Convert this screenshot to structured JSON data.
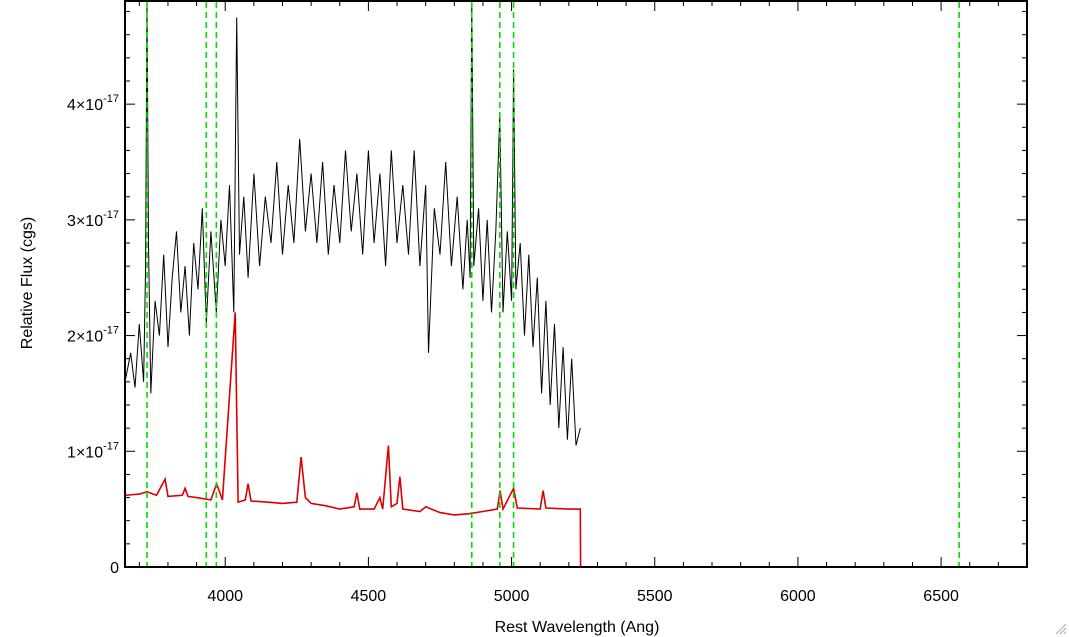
{
  "chart_data": {
    "type": "line",
    "title": "",
    "xlabel": "Rest Wavelength (Ang)",
    "ylabel": "Relative Flux (cgs)",
    "xlim": [
      3650,
      6800
    ],
    "ylim": [
      0,
      4.9e-17
    ],
    "grid": false,
    "legend": "none",
    "x_ticks": [
      {
        "value": 4000,
        "label": "4000"
      },
      {
        "value": 4500,
        "label": "4500"
      },
      {
        "value": 5000,
        "label": "5000"
      },
      {
        "value": 5500,
        "label": "5500"
      },
      {
        "value": 6000,
        "label": "6000"
      },
      {
        "value": 6500,
        "label": "6500"
      }
    ],
    "y_ticks": [
      {
        "value": 0,
        "mantissa": "0",
        "exponent": ""
      },
      {
        "value": 1e-17,
        "mantissa": "1×10",
        "exponent": "-17"
      },
      {
        "value": 2e-17,
        "mantissa": "2×10",
        "exponent": "-17"
      },
      {
        "value": 3e-17,
        "mantissa": "3×10",
        "exponent": "-17"
      },
      {
        "value": 4e-17,
        "mantissa": "4×10",
        "exponent": "-17"
      }
    ],
    "vertical_lines": {
      "color": "#00dd00",
      "style": "dashed",
      "x": [
        3727,
        3934,
        3969,
        4861,
        4959,
        5007,
        6563
      ]
    },
    "series": [
      {
        "color": "#000000",
        "points": [
          [
            3650,
            1.6e-17
          ],
          [
            3670,
            1.85e-17
          ],
          [
            3685,
            1.55e-17
          ],
          [
            3700,
            2.1e-17
          ],
          [
            3715,
            1.6e-17
          ],
          [
            3722,
            2.6e-17
          ],
          [
            3727,
            4.9e-17
          ],
          [
            3732,
            2.8e-17
          ],
          [
            3740,
            1.5e-17
          ],
          [
            3755,
            2.3e-17
          ],
          [
            3770,
            2e-17
          ],
          [
            3785,
            2.7e-17
          ],
          [
            3800,
            1.9e-17
          ],
          [
            3815,
            2.5e-17
          ],
          [
            3830,
            2.9e-17
          ],
          [
            3845,
            2.2e-17
          ],
          [
            3860,
            2.6e-17
          ],
          [
            3875,
            2e-17
          ],
          [
            3890,
            2.8e-17
          ],
          [
            3905,
            2.4e-17
          ],
          [
            3920,
            3.1e-17
          ],
          [
            3934,
            2.1e-17
          ],
          [
            3950,
            2.9e-17
          ],
          [
            3969,
            2.2e-17
          ],
          [
            3985,
            3e-17
          ],
          [
            4000,
            2.6e-17
          ],
          [
            4015,
            3.3e-17
          ],
          [
            4030,
            2.2e-17
          ],
          [
            4040,
            4.75e-17
          ],
          [
            4050,
            2.7e-17
          ],
          [
            4065,
            3.2e-17
          ],
          [
            4080,
            2.5e-17
          ],
          [
            4100,
            3.4e-17
          ],
          [
            4120,
            2.6e-17
          ],
          [
            4140,
            3.2e-17
          ],
          [
            4160,
            2.8e-17
          ],
          [
            4180,
            3.5e-17
          ],
          [
            4200,
            2.7e-17
          ],
          [
            4220,
            3.3e-17
          ],
          [
            4240,
            2.8e-17
          ],
          [
            4260,
            3.7e-17
          ],
          [
            4280,
            2.9e-17
          ],
          [
            4300,
            3.4e-17
          ],
          [
            4320,
            2.8e-17
          ],
          [
            4340,
            3.5e-17
          ],
          [
            4360,
            2.7e-17
          ],
          [
            4380,
            3.3e-17
          ],
          [
            4400,
            2.8e-17
          ],
          [
            4420,
            3.6e-17
          ],
          [
            4440,
            2.9e-17
          ],
          [
            4460,
            3.4e-17
          ],
          [
            4480,
            2.7e-17
          ],
          [
            4500,
            3.6e-17
          ],
          [
            4520,
            2.8e-17
          ],
          [
            4540,
            3.4e-17
          ],
          [
            4560,
            2.6e-17
          ],
          [
            4580,
            3.6e-17
          ],
          [
            4600,
            2.8e-17
          ],
          [
            4620,
            3.3e-17
          ],
          [
            4640,
            2.7e-17
          ],
          [
            4660,
            3.6e-17
          ],
          [
            4680,
            2.6e-17
          ],
          [
            4700,
            3.3e-17
          ],
          [
            4710,
            1.85e-17
          ],
          [
            4730,
            3.1e-17
          ],
          [
            4750,
            2.7e-17
          ],
          [
            4770,
            3.5e-17
          ],
          [
            4790,
            2.6e-17
          ],
          [
            4810,
            3.2e-17
          ],
          [
            4830,
            2.4e-17
          ],
          [
            4845,
            3e-17
          ],
          [
            4855,
            2.5e-17
          ],
          [
            4861,
            4.9e-17
          ],
          [
            4868,
            2.6e-17
          ],
          [
            4885,
            3.1e-17
          ],
          [
            4900,
            2.3e-17
          ],
          [
            4915,
            3e-17
          ],
          [
            4930,
            2.2e-17
          ],
          [
            4945,
            2.9e-17
          ],
          [
            4959,
            3.9e-17
          ],
          [
            4970,
            2.2e-17
          ],
          [
            4985,
            2.9e-17
          ],
          [
            5000,
            2.3e-17
          ],
          [
            5007,
            4.3e-17
          ],
          [
            5015,
            2.4e-17
          ],
          [
            5030,
            2.8e-17
          ],
          [
            5045,
            2e-17
          ],
          [
            5060,
            2.7e-17
          ],
          [
            5075,
            1.9e-17
          ],
          [
            5090,
            2.5e-17
          ],
          [
            5105,
            1.5e-17
          ],
          [
            5120,
            2.3e-17
          ],
          [
            5135,
            1.4e-17
          ],
          [
            5150,
            2.1e-17
          ],
          [
            5165,
            1.2e-17
          ],
          [
            5180,
            1.9e-17
          ],
          [
            5195,
            1.1e-17
          ],
          [
            5210,
            1.8e-17
          ],
          [
            5225,
            1.05e-17
          ],
          [
            5240,
            1.2e-17
          ]
        ]
      },
      {
        "color": "#dd0000",
        "points": [
          [
            3650,
            6.2e-18
          ],
          [
            3700,
            6.3e-18
          ],
          [
            3727,
            6.5e-18
          ],
          [
            3760,
            6.2e-18
          ],
          [
            3790,
            7.6e-18
          ],
          [
            3800,
            6.1e-18
          ],
          [
            3850,
            6.2e-18
          ],
          [
            3860,
            6.8e-18
          ],
          [
            3870,
            6.1e-18
          ],
          [
            3900,
            6e-18
          ],
          [
            3950,
            5.8e-18
          ],
          [
            3970,
            7.2e-18
          ],
          [
            3990,
            5.8e-18
          ],
          [
            4035,
            2.2e-17
          ],
          [
            4045,
            5.6e-18
          ],
          [
            4070,
            5.8e-18
          ],
          [
            4080,
            7.2e-18
          ],
          [
            4090,
            5.7e-18
          ],
          [
            4150,
            5.6e-18
          ],
          [
            4200,
            5.5e-18
          ],
          [
            4250,
            5.6e-18
          ],
          [
            4265,
            9.5e-18
          ],
          [
            4280,
            6e-18
          ],
          [
            4300,
            5.5e-18
          ],
          [
            4350,
            5.3e-18
          ],
          [
            4400,
            5e-18
          ],
          [
            4450,
            5.2e-18
          ],
          [
            4460,
            6.4e-18
          ],
          [
            4470,
            5e-18
          ],
          [
            4520,
            5e-18
          ],
          [
            4540,
            6e-18
          ],
          [
            4550,
            5e-18
          ],
          [
            4570,
            1.05e-17
          ],
          [
            4580,
            5.2e-18
          ],
          [
            4600,
            5.5e-18
          ],
          [
            4610,
            7.8e-18
          ],
          [
            4620,
            5e-18
          ],
          [
            4680,
            4.8e-18
          ],
          [
            4700,
            5.2e-18
          ],
          [
            4750,
            4.7e-18
          ],
          [
            4800,
            4.5e-18
          ],
          [
            4850,
            4.6e-18
          ],
          [
            4900,
            4.8e-18
          ],
          [
            4950,
            5e-18
          ],
          [
            4960,
            6.6e-18
          ],
          [
            4970,
            5e-18
          ],
          [
            5007,
            6.8e-18
          ],
          [
            5020,
            5.1e-18
          ],
          [
            5100,
            5e-18
          ],
          [
            5110,
            6.6e-18
          ],
          [
            5120,
            5.1e-18
          ],
          [
            5200,
            5e-18
          ],
          [
            5240,
            5e-18
          ],
          [
            5241,
            0.0
          ],
          [
            6800,
            0.0
          ]
        ]
      }
    ]
  }
}
